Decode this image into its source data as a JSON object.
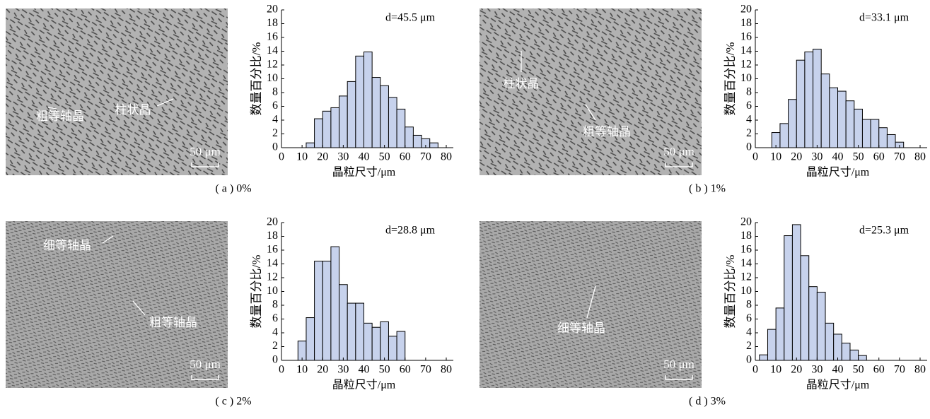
{
  "panels": [
    {
      "caption": "( a ) 0%",
      "micrograph_labels": [
        "粗等轴晶",
        "柱状晶"
      ],
      "scale_bar": "50 μm"
    },
    {
      "caption": "( b ) 1%",
      "micrograph_labels": [
        "柱状晶",
        "粗等轴晶"
      ],
      "scale_bar": "50 μm"
    },
    {
      "caption": "( c ) 2%",
      "micrograph_labels": [
        "细等轴晶",
        "粗等轴晶"
      ],
      "scale_bar": "50 μm"
    },
    {
      "caption": "( d ) 3%",
      "micrograph_labels": [
        "细等轴晶"
      ],
      "scale_bar": "50 μm"
    }
  ],
  "chart_data": [
    {
      "type": "histogram",
      "annotation": "d=45.5 μm",
      "xlabel": "晶粒尺寸/μm",
      "ylabel": "数量百分比/%",
      "color": "#c7d2ec",
      "bins": [
        12,
        16,
        20,
        24,
        28,
        32,
        36,
        40,
        44,
        48,
        52,
        56,
        60,
        64,
        68,
        72,
        76
      ],
      "values": [
        0.7,
        4.2,
        5.3,
        5.8,
        7.5,
        9.6,
        13.3,
        13.9,
        10.2,
        9.0,
        7.3,
        5.6,
        3.0,
        1.8,
        1.3,
        0.7
      ],
      "xlim": [
        0,
        80
      ],
      "ylim": [
        0,
        20
      ],
      "xticks": [
        0,
        10,
        20,
        30,
        40,
        50,
        60,
        70,
        80
      ],
      "yticks": [
        0,
        2,
        4,
        6,
        8,
        10,
        12,
        14,
        16,
        18,
        20
      ]
    },
    {
      "type": "histogram",
      "annotation": "d=33.1 μm",
      "xlabel": "晶粒尺寸/μm",
      "ylabel": "数量百分比/%",
      "color": "#c7d2ec",
      "bins": [
        8,
        12,
        16,
        20,
        24,
        28,
        32,
        36,
        40,
        44,
        48,
        52,
        56,
        60,
        64,
        68,
        72
      ],
      "values": [
        2.2,
        3.5,
        7.0,
        12.7,
        13.9,
        14.3,
        10.7,
        8.7,
        8.2,
        6.8,
        5.6,
        4.1,
        4.1,
        2.9,
        1.9,
        0.8
      ],
      "xlim": [
        0,
        80
      ],
      "ylim": [
        0,
        20
      ],
      "xticks": [
        0,
        10,
        20,
        30,
        40,
        50,
        60,
        70,
        80
      ],
      "yticks": [
        0,
        2,
        4,
        6,
        8,
        10,
        12,
        14,
        16,
        18,
        20
      ]
    },
    {
      "type": "histogram",
      "annotation": "d=28.8 μm",
      "xlabel": "晶粒尺寸/μm",
      "ylabel": "数量百分比/%",
      "color": "#c7d2ec",
      "bins": [
        8,
        12,
        16,
        20,
        24,
        28,
        32,
        36,
        40,
        44,
        48,
        52,
        56,
        60
      ],
      "values": [
        2.8,
        6.2,
        14.4,
        14.4,
        16.5,
        11.0,
        8.3,
        8.3,
        5.4,
        4.8,
        5.6,
        3.5,
        4.2
      ],
      "xlim": [
        0,
        80
      ],
      "ylim": [
        0,
        20
      ],
      "xticks": [
        0,
        10,
        20,
        30,
        40,
        50,
        60,
        70,
        80
      ],
      "yticks": [
        0,
        2,
        4,
        6,
        8,
        10,
        12,
        14,
        16,
        18,
        20
      ]
    },
    {
      "type": "histogram",
      "annotation": "d=25.3 μm",
      "xlabel": "晶粒尺寸/μm",
      "ylabel": "数量百分比/%",
      "color": "#c7d2ec",
      "bins": [
        2,
        6,
        10,
        14,
        18,
        22,
        26,
        30,
        34,
        38,
        42,
        46,
        50,
        54
      ],
      "values": [
        0.8,
        4.5,
        7.6,
        18.1,
        19.7,
        15.2,
        10.7,
        9.9,
        5.4,
        3.8,
        2.5,
        1.5,
        0.7
      ],
      "xlim": [
        0,
        80
      ],
      "ylim": [
        0,
        20
      ],
      "xticks": [
        0,
        10,
        20,
        30,
        40,
        50,
        60,
        70,
        80
      ],
      "yticks": [
        0,
        2,
        4,
        6,
        8,
        10,
        12,
        14,
        16,
        18,
        20
      ]
    }
  ]
}
